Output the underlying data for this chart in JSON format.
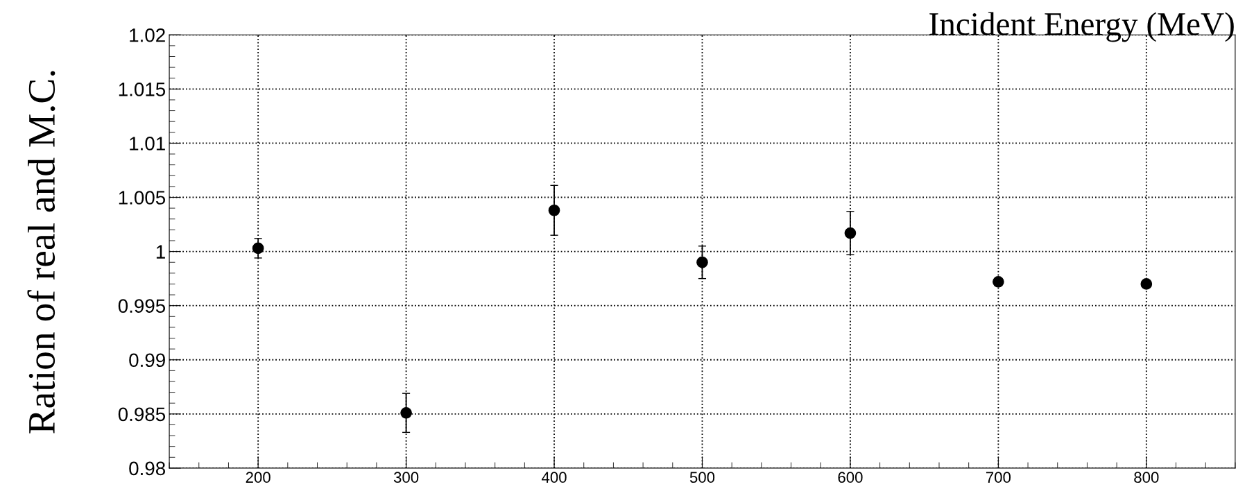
{
  "chart_data": {
    "type": "scatter",
    "xlabel": "Incident Energy (MeV)",
    "ylabel": "Ration of real and M.C.",
    "x": [
      200,
      300,
      400,
      500,
      600,
      700,
      800
    ],
    "values": [
      1.0003,
      0.9851,
      1.0038,
      0.999,
      1.0017,
      0.9972,
      0.997
    ],
    "errors": [
      0.0009,
      0.0018,
      0.0023,
      0.0015,
      0.002,
      null,
      null
    ],
    "color": "#000000",
    "marker": "circle",
    "xlim": [
      140,
      860
    ],
    "xticks": [
      200,
      300,
      400,
      500,
      600,
      700,
      800
    ],
    "ylim": [
      0.98,
      1.02
    ],
    "yticks": [
      0.98,
      0.985,
      0.99,
      0.995,
      1,
      1.005,
      1.01,
      1.015,
      1.02
    ],
    "grid": true
  }
}
